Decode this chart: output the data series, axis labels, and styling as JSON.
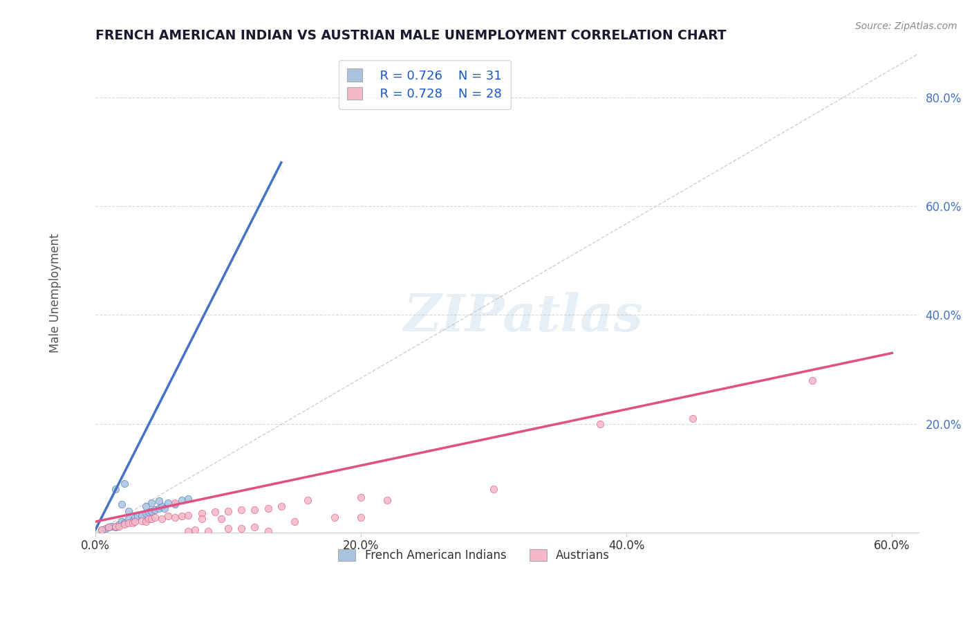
{
  "title": "FRENCH AMERICAN INDIAN VS AUSTRIAN MALE UNEMPLOYMENT CORRELATION CHART",
  "source": "Source: ZipAtlas.com",
  "ylabel": "Male Unemployment",
  "xlim": [
    0.0,
    0.62
  ],
  "ylim": [
    0.0,
    0.88
  ],
  "xtick_vals": [
    0.0,
    0.2,
    0.4,
    0.6
  ],
  "xtick_labels": [
    "0.0%",
    "20.0%",
    "40.0%",
    "60.0%"
  ],
  "ytick_vals": [
    0.2,
    0.4,
    0.6,
    0.8
  ],
  "ytick_labels": [
    "20.0%",
    "40.0%",
    "60.0%",
    "80.0%"
  ],
  "legend_r1": "R = 0.726",
  "legend_n1": "N = 31",
  "legend_r2": "R = 0.728",
  "legend_n2": "N = 28",
  "color_blue": "#aac4e0",
  "color_pink": "#f4b8c8",
  "line_blue": "#4472c4",
  "line_pink": "#e05080",
  "ytick_color": "#4472c4",
  "title_color": "#1a1a2e",
  "source_color": "#888888",
  "watermark": "ZIPatlas",
  "french_indian_points": [
    [
      0.005,
      0.005
    ],
    [
      0.008,
      0.008
    ],
    [
      0.01,
      0.01
    ],
    [
      0.012,
      0.012
    ],
    [
      0.015,
      0.01
    ],
    [
      0.018,
      0.015
    ],
    [
      0.02,
      0.02
    ],
    [
      0.022,
      0.018
    ],
    [
      0.025,
      0.025
    ],
    [
      0.028,
      0.022
    ],
    [
      0.03,
      0.028
    ],
    [
      0.032,
      0.03
    ],
    [
      0.035,
      0.032
    ],
    [
      0.038,
      0.035
    ],
    [
      0.04,
      0.038
    ],
    [
      0.042,
      0.04
    ],
    [
      0.045,
      0.042
    ],
    [
      0.048,
      0.045
    ],
    [
      0.05,
      0.048
    ],
    [
      0.052,
      0.045
    ],
    [
      0.015,
      0.08
    ],
    [
      0.022,
      0.09
    ],
    [
      0.055,
      0.055
    ],
    [
      0.06,
      0.052
    ],
    [
      0.02,
      0.052
    ],
    [
      0.042,
      0.055
    ],
    [
      0.048,
      0.058
    ],
    [
      0.065,
      0.06
    ],
    [
      0.07,
      0.062
    ],
    [
      0.038,
      0.048
    ],
    [
      0.025,
      0.04
    ]
  ],
  "austrian_points": [
    [
      0.005,
      0.005
    ],
    [
      0.01,
      0.01
    ],
    [
      0.015,
      0.012
    ],
    [
      0.018,
      0.012
    ],
    [
      0.022,
      0.015
    ],
    [
      0.025,
      0.018
    ],
    [
      0.028,
      0.018
    ],
    [
      0.03,
      0.02
    ],
    [
      0.035,
      0.022
    ],
    [
      0.038,
      0.02
    ],
    [
      0.04,
      0.025
    ],
    [
      0.042,
      0.025
    ],
    [
      0.045,
      0.028
    ],
    [
      0.05,
      0.025
    ],
    [
      0.055,
      0.03
    ],
    [
      0.06,
      0.028
    ],
    [
      0.065,
      0.03
    ],
    [
      0.07,
      0.032
    ],
    [
      0.08,
      0.035
    ],
    [
      0.09,
      0.038
    ],
    [
      0.1,
      0.04
    ],
    [
      0.11,
      0.042
    ],
    [
      0.12,
      0.042
    ],
    [
      0.13,
      0.045
    ],
    [
      0.14,
      0.048
    ],
    [
      0.2,
      0.065
    ],
    [
      0.22,
      0.06
    ],
    [
      0.16,
      0.06
    ],
    [
      0.3,
      0.08
    ],
    [
      0.38,
      0.2
    ],
    [
      0.45,
      0.21
    ],
    [
      0.54,
      0.28
    ],
    [
      0.2,
      0.028
    ],
    [
      0.18,
      0.028
    ],
    [
      0.15,
      0.02
    ],
    [
      0.08,
      0.025
    ],
    [
      0.095,
      0.025
    ],
    [
      0.06,
      0.055
    ],
    [
      0.075,
      0.005
    ],
    [
      0.11,
      0.008
    ],
    [
      0.07,
      0.002
    ],
    [
      0.085,
      0.002
    ],
    [
      0.1,
      0.008
    ],
    [
      0.12,
      0.01
    ],
    [
      0.13,
      0.002
    ]
  ]
}
